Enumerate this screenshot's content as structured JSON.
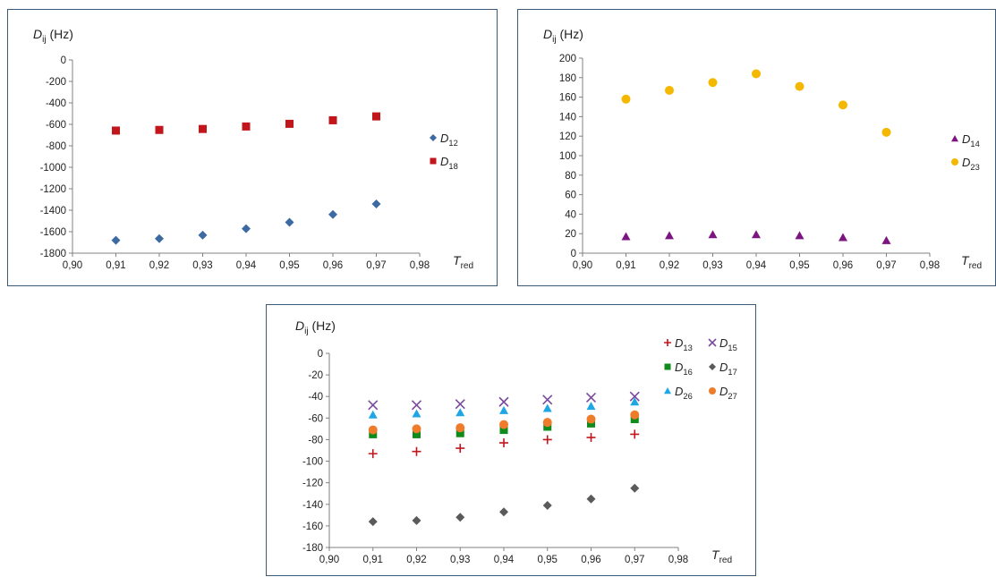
{
  "charts": [
    {
      "type": "scatter",
      "ylabel_main": "D",
      "ylabel_sub": "ij",
      "ylabel_unit": "(Hz)",
      "xlabel_main": "T",
      "xlabel_sub": "red",
      "xlim": [
        0.9,
        0.98
      ],
      "ylim": [
        -1800,
        0
      ],
      "x_ticks": [
        "0,90",
        "0,91",
        "0,92",
        "0,93",
        "0,94",
        "0,95",
        "0,96",
        "0,97",
        "0,98"
      ],
      "y_ticks": [
        "0",
        "-200",
        "-400",
        "-600",
        "-800",
        "-1000",
        "-1200",
        "-1400",
        "-1600",
        "-1800"
      ],
      "legend_position": "right",
      "series": [
        {
          "label_main": "D",
          "label_sub": "12",
          "color": "#3d6aa3",
          "marker": "diamond",
          "x": [
            0.91,
            0.92,
            0.93,
            0.94,
            0.95,
            0.96,
            0.97
          ],
          "y": [
            -1680,
            -1665,
            -1632,
            -1572,
            -1512,
            -1440,
            -1342
          ]
        },
        {
          "label_main": "D",
          "label_sub": "18",
          "color": "#c0161c",
          "marker": "square",
          "x": [
            0.91,
            0.92,
            0.93,
            0.94,
            0.95,
            0.96,
            0.97
          ],
          "y": [
            -658,
            -652,
            -643,
            -620,
            -595,
            -562,
            -526
          ]
        }
      ]
    },
    {
      "type": "scatter",
      "ylabel_main": "D",
      "ylabel_sub": "ij",
      "ylabel_unit": "(Hz)",
      "xlabel_main": "T",
      "xlabel_sub": "red",
      "xlim": [
        0.9,
        0.98
      ],
      "ylim": [
        0,
        200
      ],
      "x_ticks": [
        "0,90",
        "0,91",
        "0,92",
        "0,93",
        "0,94",
        "0,95",
        "0,96",
        "0,97",
        "0,98"
      ],
      "y_ticks": [
        "200",
        "180",
        "160",
        "140",
        "120",
        "100",
        "80",
        "60",
        "40",
        "20",
        "0"
      ],
      "legend_position": "right",
      "series": [
        {
          "label_main": "D",
          "label_sub": "14",
          "color": "#7d1580",
          "marker": "triangle",
          "x": [
            0.91,
            0.92,
            0.93,
            0.94,
            0.95,
            0.96,
            0.97
          ],
          "y": [
            17,
            18,
            19,
            19,
            18,
            16,
            13
          ]
        },
        {
          "label_main": "D",
          "label_sub": "23",
          "color": "#f5b800",
          "marker": "circle",
          "x": [
            0.91,
            0.92,
            0.93,
            0.94,
            0.95,
            0.96,
            0.97
          ],
          "y": [
            158,
            167,
            175,
            184,
            171,
            152,
            124
          ]
        }
      ]
    },
    {
      "type": "scatter",
      "ylabel_main": "D",
      "ylabel_sub": "ij",
      "ylabel_unit": "(Hz)",
      "xlabel_main": "T",
      "xlabel_sub": "red",
      "xlim": [
        0.9,
        0.98
      ],
      "ylim": [
        -180,
        0
      ],
      "x_ticks": [
        "0,90",
        "0,91",
        "0,92",
        "0,93",
        "0,94",
        "0,95",
        "0,96",
        "0,97",
        "0,98"
      ],
      "y_ticks": [
        "0",
        "-20",
        "-40",
        "-60",
        "-80",
        "-100",
        "-120",
        "-140",
        "-160",
        "-180"
      ],
      "legend_position": "top-right",
      "series": [
        {
          "label_main": "D",
          "label_sub": "13",
          "color": "#c0161c",
          "marker": "plus",
          "x": [
            0.91,
            0.92,
            0.93,
            0.94,
            0.95,
            0.96,
            0.97
          ],
          "y": [
            -93,
            -91,
            -88,
            -83,
            -80,
            -78,
            -75
          ]
        },
        {
          "label_main": "D",
          "label_sub": "15",
          "color": "#7b4a9e",
          "marker": "cross",
          "x": [
            0.91,
            0.92,
            0.93,
            0.94,
            0.95,
            0.96,
            0.97
          ],
          "y": [
            -48,
            -48,
            -47,
            -45,
            -43,
            -41,
            -40
          ]
        },
        {
          "label_main": "D",
          "label_sub": "16",
          "color": "#0f8a1c",
          "marker": "square",
          "x": [
            0.91,
            0.92,
            0.93,
            0.94,
            0.95,
            0.96,
            0.97
          ],
          "y": [
            -75,
            -75,
            -74,
            -71,
            -68,
            -65,
            -61
          ]
        },
        {
          "label_main": "D",
          "label_sub": "17",
          "color": "#5a5a5a",
          "marker": "diamond",
          "x": [
            0.91,
            0.92,
            0.93,
            0.94,
            0.95,
            0.96,
            0.97
          ],
          "y": [
            -156,
            -155,
            -152,
            -147,
            -141,
            -135,
            -125
          ]
        },
        {
          "label_main": "D",
          "label_sub": "26",
          "color": "#1ea7e4",
          "marker": "triangle",
          "x": [
            0.91,
            0.92,
            0.93,
            0.94,
            0.95,
            0.96,
            0.97
          ],
          "y": [
            -57,
            -56,
            -55,
            -53,
            -51,
            -49,
            -45
          ]
        },
        {
          "label_main": "D",
          "label_sub": "27",
          "color": "#ef7c2a",
          "marker": "circle",
          "x": [
            0.91,
            0.92,
            0.93,
            0.94,
            0.95,
            0.96,
            0.97
          ],
          "y": [
            -71,
            -70,
            -69,
            -66,
            -64,
            -61,
            -57
          ]
        }
      ]
    }
  ]
}
